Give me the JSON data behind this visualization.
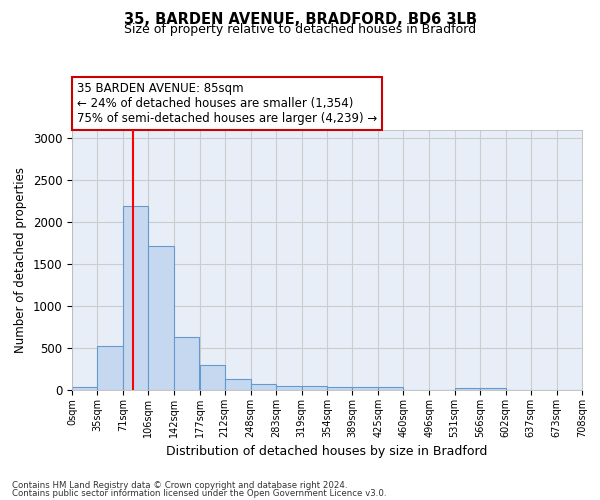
{
  "title1": "35, BARDEN AVENUE, BRADFORD, BD6 3LB",
  "title2": "Size of property relative to detached houses in Bradford",
  "xlabel": "Distribution of detached houses by size in Bradford",
  "ylabel": "Number of detached properties",
  "bin_edges": [
    0,
    35,
    71,
    106,
    142,
    177,
    212,
    248,
    283,
    319,
    354,
    389,
    425,
    460,
    496,
    531,
    566,
    602,
    637,
    673,
    708
  ],
  "bar_heights": [
    35,
    525,
    2190,
    1720,
    635,
    295,
    135,
    75,
    45,
    45,
    40,
    30,
    30,
    0,
    0,
    25,
    20,
    0,
    0,
    0
  ],
  "bar_color": "#c5d8f0",
  "bar_edge_color": "#6699cc",
  "grid_color": "#cccccc",
  "bg_color": "#e8eef8",
  "red_line_x": 85,
  "annotation_text": "35 BARDEN AVENUE: 85sqm\n← 24% of detached houses are smaller (1,354)\n75% of semi-detached houses are larger (4,239) →",
  "annotation_box_color": "#ffffff",
  "annotation_border_color": "#cc0000",
  "ylim": [
    0,
    3100
  ],
  "yticks": [
    0,
    500,
    1000,
    1500,
    2000,
    2500,
    3000
  ],
  "footer1": "Contains HM Land Registry data © Crown copyright and database right 2024.",
  "footer2": "Contains public sector information licensed under the Open Government Licence v3.0."
}
